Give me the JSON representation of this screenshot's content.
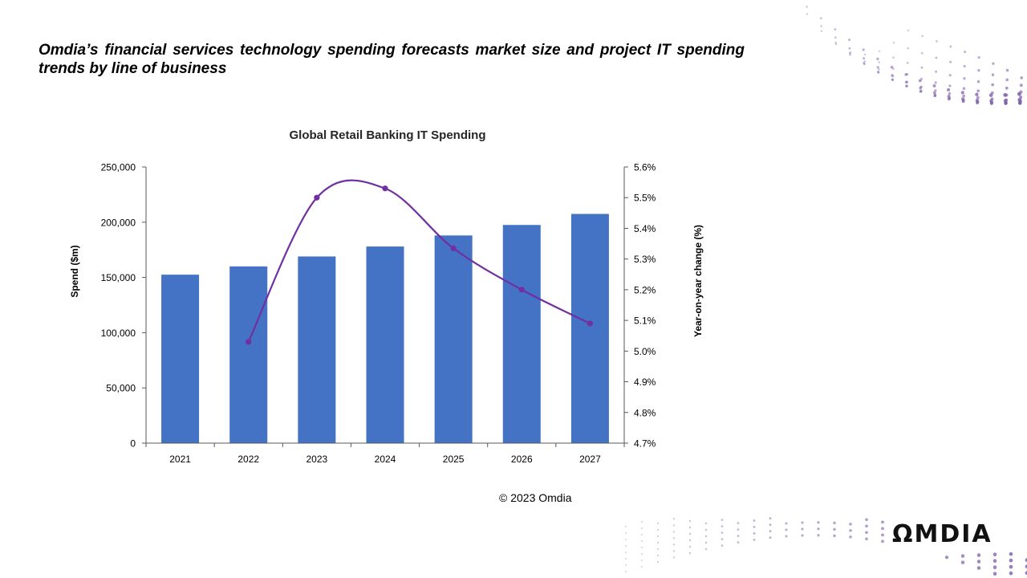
{
  "slide": {
    "heading": "Omdia’s financial services technology spending forecasts market size and project IT spending trends by line of business",
    "copyright": "© 2023  Omdia",
    "logo_text": "OMDIA"
  },
  "colors": {
    "bar": "#4472C4",
    "line": "#7030A0",
    "dots": "#7B5EA7",
    "axis": "#595959"
  },
  "chart_data": {
    "type": "bar",
    "title": "Global Retail Banking IT Spending",
    "categories": [
      "2021",
      "2022",
      "2023",
      "2024",
      "2025",
      "2026",
      "2027"
    ],
    "series": [
      {
        "name": "Spend ($m)",
        "type": "bar",
        "axis": "left",
        "values": [
          152500,
          160000,
          169000,
          178000,
          188000,
          197500,
          207500
        ]
      },
      {
        "name": "Year-on-year change (%)",
        "type": "line",
        "axis": "right",
        "values": [
          null,
          5.03,
          5.5,
          5.53,
          5.335,
          5.2,
          5.09
        ]
      }
    ],
    "ylabel": "Spend ($m)",
    "y2label": "Year-on-year change (%)",
    "ylim": [
      0,
      250000
    ],
    "yticks": [
      0,
      50000,
      100000,
      150000,
      200000,
      250000
    ],
    "ytick_labels": [
      "0",
      "50,000",
      "100,000",
      "150,000",
      "200,000",
      "250,000"
    ],
    "y2lim": [
      4.7,
      5.6
    ],
    "y2ticks": [
      4.7,
      4.8,
      4.9,
      5.0,
      5.1,
      5.2,
      5.3,
      5.4,
      5.5,
      5.6
    ],
    "y2tick_labels": [
      "4.7%",
      "4.8%",
      "4.9%",
      "5.0%",
      "5.1%",
      "5.2%",
      "5.3%",
      "5.4%",
      "5.5%",
      "5.6%"
    ],
    "grid": false,
    "legend": "none"
  }
}
